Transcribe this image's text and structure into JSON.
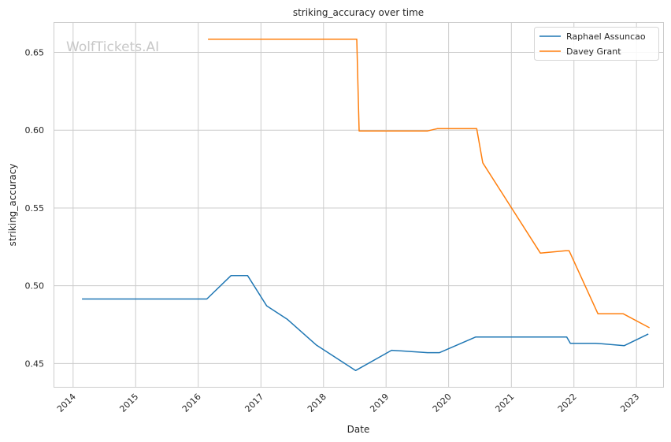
{
  "watermark": "WolfTickets.AI",
  "chart_data": {
    "type": "line",
    "title": "striking_accuracy over time",
    "xlabel": "Date",
    "ylabel": "striking_accuracy",
    "xlim": [
      "2013-09-09",
      "2023-06-10"
    ],
    "ylim": [
      0.4345,
      0.6695
    ],
    "x_ticks": [
      "2014",
      "2015",
      "2016",
      "2017",
      "2018",
      "2019",
      "2020",
      "2021",
      "2022",
      "2023"
    ],
    "y_ticks": [
      "0.45",
      "0.50",
      "0.55",
      "0.60",
      "0.65"
    ],
    "grid": true,
    "legend_position": "top-right",
    "series": [
      {
        "name": "Raphael Assuncao",
        "color": "#1f77b4",
        "points": [
          [
            "2014-02-22",
            0.4915
          ],
          [
            "2016-02-20",
            0.4915
          ],
          [
            "2016-07-10",
            0.5065
          ],
          [
            "2016-10-15",
            0.5065
          ],
          [
            "2017-02-04",
            0.487
          ],
          [
            "2017-06-03",
            0.4785
          ],
          [
            "2017-11-19",
            0.462
          ],
          [
            "2018-07-07",
            0.4455
          ],
          [
            "2019-02-02",
            0.4585
          ],
          [
            "2019-08-31",
            0.457
          ],
          [
            "2019-11-09",
            0.457
          ],
          [
            "2020-06-06",
            0.467
          ],
          [
            "2021-11-20",
            0.467
          ],
          [
            "2021-12-11",
            0.463
          ],
          [
            "2022-05-07",
            0.463
          ],
          [
            "2022-10-22",
            0.4615
          ],
          [
            "2023-03-11",
            0.469
          ]
        ]
      },
      {
        "name": "Davey Grant",
        "color": "#ff7f0e",
        "points": [
          [
            "2016-02-27",
            0.6585
          ],
          [
            "2018-07-14",
            0.6585
          ],
          [
            "2018-07-28",
            0.5995
          ],
          [
            "2019-08-31",
            0.5995
          ],
          [
            "2019-10-26",
            0.601
          ],
          [
            "2020-06-13",
            0.601
          ],
          [
            "2020-07-18",
            0.579
          ],
          [
            "2021-06-19",
            0.521
          ],
          [
            "2021-11-13",
            0.5225
          ],
          [
            "2021-12-04",
            0.5225
          ],
          [
            "2022-05-21",
            0.482
          ],
          [
            "2022-10-15",
            0.482
          ],
          [
            "2023-03-18",
            0.473
          ]
        ]
      }
    ]
  }
}
